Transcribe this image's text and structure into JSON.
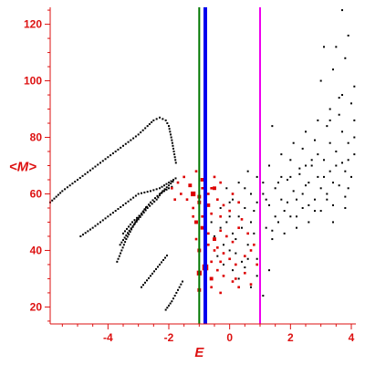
{
  "chart_data": {
    "type": "scatter",
    "title": "",
    "xlabel": "E",
    "ylabel": "<M>",
    "xlim": [
      -5.9,
      4.15
    ],
    "ylim": [
      14,
      126
    ],
    "xticks": [
      -4,
      -2,
      0,
      2,
      4
    ],
    "xtick_labels": [
      "-4",
      "-2",
      "0",
      "2",
      "4"
    ],
    "yticks": [
      20,
      40,
      60,
      80,
      100,
      120
    ],
    "ytick_labels": [
      "20",
      "40",
      "60",
      "80",
      "100",
      "120"
    ],
    "grid": false,
    "colors": {
      "axis": "#dd1111",
      "black_points": "#000000",
      "red_points": "#dd0000"
    },
    "vlines": [
      {
        "x": -1.0,
        "color": "#007700",
        "width": 2
      },
      {
        "x": -0.8,
        "color": "#0000ee",
        "width": 4
      },
      {
        "x": 1.0,
        "color": "#ee00ee",
        "width": 2
      }
    ],
    "curves": [
      {
        "color": "#000000",
        "x": [
          -5.9,
          -5.5,
          -5.0,
          -4.5,
          -4.0,
          -3.5,
          -3.0,
          -2.7,
          -2.5,
          -2.3,
          -2.1,
          -2.0,
          -1.9,
          -1.75
        ],
        "y": [
          57,
          61,
          65,
          69,
          73,
          77,
          81,
          84,
          86,
          87,
          86,
          84,
          79,
          70
        ]
      },
      {
        "color": "#000000",
        "x": [
          -4.9,
          -4.5,
          -4.0,
          -3.5,
          -3.0,
          -2.6,
          -2.3,
          -2.0,
          -1.7
        ],
        "y": [
          45,
          48,
          52,
          56,
          60,
          61,
          62,
          64,
          66
        ]
      },
      {
        "color": "#000000",
        "x": [
          -3.7,
          -3.4,
          -3.1,
          -2.9,
          -2.7
        ],
        "y": [
          36,
          44,
          50,
          53,
          56
        ]
      },
      {
        "color": "#000000",
        "x": [
          -3.6,
          -3.3,
          -3.0,
          -2.7,
          -2.4,
          -2.2,
          -2.0,
          -1.8
        ],
        "y": [
          42,
          47,
          51,
          55,
          58,
          61,
          63,
          65
        ]
      },
      {
        "color": "#000000",
        "x": [
          -3.5,
          -3.2,
          -2.9,
          -2.6,
          -2.3,
          -2.0,
          -1.8
        ],
        "y": [
          46,
          50,
          53,
          57,
          60,
          62,
          63
        ]
      },
      {
        "color": "#000000",
        "x": [
          -2.9,
          -2.6,
          -2.3,
          -2.0
        ],
        "y": [
          27,
          31,
          35,
          39
        ]
      },
      {
        "color": "#000000",
        "x": [
          -2.1,
          -1.9,
          -1.7,
          -1.5
        ],
        "y": [
          19,
          22,
          26,
          30
        ]
      }
    ],
    "black_cloud": {
      "color": "#000000",
      "points": [
        [
          -0.5,
          45
        ],
        [
          -0.3,
          48
        ],
        [
          -0.1,
          50
        ],
        [
          0.1,
          46
        ],
        [
          0.3,
          52
        ],
        [
          0.5,
          55
        ],
        [
          0.7,
          50
        ],
        [
          0.9,
          57
        ],
        [
          1.1,
          60
        ],
        [
          1.3,
          56
        ],
        [
          1.5,
          62
        ],
        [
          1.7,
          58
        ],
        [
          1.9,
          65
        ],
        [
          2.1,
          61
        ],
        [
          2.3,
          67
        ],
        [
          2.5,
          63
        ],
        [
          2.7,
          70
        ],
        [
          2.9,
          66
        ],
        [
          3.1,
          72
        ],
        [
          3.3,
          68
        ],
        [
          3.5,
          75
        ],
        [
          3.7,
          71
        ],
        [
          3.9,
          78
        ],
        [
          4.1,
          74
        ],
        [
          -0.4,
          38
        ],
        [
          -0.2,
          42
        ],
        [
          0.0,
          40
        ],
        [
          0.2,
          44
        ],
        [
          0.4,
          36
        ],
        [
          0.6,
          42
        ],
        [
          0.8,
          46
        ],
        [
          1.0,
          40
        ],
        [
          1.2,
          48
        ],
        [
          1.4,
          44
        ],
        [
          1.6,
          50
        ],
        [
          1.8,
          46
        ],
        [
          2.0,
          52
        ],
        [
          2.2,
          48
        ],
        [
          2.4,
          55
        ],
        [
          2.6,
          50
        ],
        [
          2.8,
          58
        ],
        [
          3.0,
          54
        ],
        [
          3.2,
          60
        ],
        [
          3.4,
          56
        ],
        [
          3.6,
          63
        ],
        [
          3.8,
          59
        ],
        [
          4.0,
          66
        ],
        [
          0.1,
          58
        ],
        [
          0.5,
          62
        ],
        [
          0.9,
          66
        ],
        [
          1.3,
          70
        ],
        [
          1.7,
          74
        ],
        [
          2.1,
          78
        ],
        [
          2.5,
          82
        ],
        [
          2.9,
          86
        ],
        [
          3.3,
          90
        ],
        [
          3.7,
          95
        ],
        [
          4.1,
          98
        ],
        [
          0.3,
          30
        ],
        [
          0.7,
          27
        ],
        [
          1.1,
          24
        ],
        [
          1.3,
          33
        ],
        [
          0.5,
          34
        ],
        [
          0.9,
          31
        ],
        [
          -0.3,
          55
        ],
        [
          0.0,
          57
        ],
        [
          0.6,
          68
        ],
        [
          1.0,
          75
        ],
        [
          1.4,
          84
        ],
        [
          2.0,
          72
        ],
        [
          2.4,
          76
        ],
        [
          2.8,
          79
        ],
        [
          3.2,
          84
        ],
        [
          3.6,
          88
        ],
        [
          4.0,
          92
        ],
        [
          3.0,
          100
        ],
        [
          3.4,
          104
        ],
        [
          3.8,
          108
        ],
        [
          3.5,
          112
        ],
        [
          3.7,
          125
        ],
        [
          3.1,
          112
        ],
        [
          3.9,
          116
        ],
        [
          1.6,
          64
        ],
        [
          2.2,
          58
        ],
        [
          2.6,
          64
        ],
        [
          3.0,
          62
        ],
        [
          3.4,
          64
        ],
        [
          3.8,
          68
        ],
        [
          1.8,
          54
        ],
        [
          2.4,
          60
        ],
        [
          2.9,
          74
        ],
        [
          3.3,
          78
        ],
        [
          3.7,
          82
        ],
        [
          4.1,
          86
        ],
        [
          1.5,
          52
        ],
        [
          1.9,
          57
        ],
        [
          0.4,
          48
        ],
        [
          0.8,
          54
        ],
        [
          1.2,
          58
        ],
        [
          0.2,
          39
        ],
        [
          0.6,
          37
        ],
        [
          -0.6,
          50
        ],
        [
          -0.1,
          62
        ],
        [
          0.3,
          64
        ],
        [
          0.7,
          60
        ],
        [
          1.1,
          64
        ],
        [
          2.3,
          69
        ],
        [
          2.7,
          72
        ],
        [
          3.1,
          66
        ],
        [
          3.5,
          70
        ],
        [
          3.9,
          72
        ],
        [
          4.1,
          80
        ],
        [
          1.7,
          66
        ],
        [
          2.5,
          70
        ],
        [
          3.3,
          86
        ],
        [
          3.6,
          94
        ],
        [
          2.0,
          66
        ],
        [
          2.6,
          56
        ],
        [
          3.2,
          58
        ],
        [
          3.9,
          62
        ],
        [
          1.0,
          44
        ],
        [
          1.4,
          47
        ],
        [
          0.0,
          52
        ],
        [
          -0.2,
          35
        ],
        [
          0.1,
          33
        ],
        [
          0.9,
          37
        ],
        [
          2.2,
          52
        ],
        [
          2.8,
          54
        ],
        [
          3.4,
          50
        ],
        [
          3.8,
          55
        ]
      ]
    },
    "red_points": {
      "color": "#dd0000",
      "points": [
        [
          -1.9,
          62,
          2
        ],
        [
          -1.7,
          64,
          2
        ],
        [
          -1.5,
          66,
          2
        ],
        [
          -1.3,
          63,
          3
        ],
        [
          -1.1,
          68,
          2
        ],
        [
          -0.9,
          65,
          3
        ],
        [
          -0.7,
          60,
          2
        ],
        [
          -0.5,
          62,
          3
        ],
        [
          -1.4,
          58,
          2
        ],
        [
          -1.2,
          60,
          4
        ],
        [
          -1.0,
          57,
          3
        ],
        [
          -0.8,
          55,
          3
        ],
        [
          -0.6,
          53,
          2
        ],
        [
          -0.4,
          58,
          2
        ],
        [
          -0.2,
          56,
          2
        ],
        [
          0.0,
          54,
          2
        ],
        [
          -1.1,
          50,
          3
        ],
        [
          -0.9,
          48,
          3
        ],
        [
          -0.7,
          46,
          2
        ],
        [
          -0.5,
          44,
          3
        ],
        [
          -0.3,
          47,
          2
        ],
        [
          -0.1,
          45,
          2
        ],
        [
          0.1,
          43,
          2
        ],
        [
          0.3,
          48,
          2
        ],
        [
          -1.0,
          40,
          3
        ],
        [
          -0.8,
          38,
          3
        ],
        [
          -0.6,
          36,
          2
        ],
        [
          -0.4,
          41,
          2
        ],
        [
          -0.2,
          39,
          2
        ],
        [
          0.0,
          37,
          2
        ],
        [
          0.2,
          35,
          2
        ],
        [
          -1.0,
          32,
          4
        ],
        [
          -0.8,
          34,
          5
        ],
        [
          -0.6,
          30,
          3
        ],
        [
          -0.4,
          33,
          2
        ],
        [
          -0.2,
          31,
          2
        ],
        [
          0.1,
          29,
          2
        ],
        [
          0.3,
          27,
          2
        ],
        [
          -1.0,
          26,
          3
        ],
        [
          -0.8,
          24,
          2
        ],
        [
          -0.6,
          27,
          2
        ],
        [
          -0.3,
          25,
          2
        ],
        [
          0.2,
          30,
          2
        ],
        [
          0.5,
          32,
          2
        ],
        [
          0.7,
          28,
          2
        ],
        [
          -1.2,
          55,
          2
        ],
        [
          -1.0,
          59,
          3
        ],
        [
          -0.9,
          62,
          2
        ],
        [
          -1.2,
          52,
          2
        ],
        [
          -0.3,
          52,
          2
        ],
        [
          0.4,
          51,
          2
        ],
        [
          0.6,
          46,
          2
        ],
        [
          0.8,
          42,
          2
        ],
        [
          -1.6,
          60,
          2
        ],
        [
          -1.8,
          58,
          2
        ],
        [
          -0.5,
          66,
          2
        ],
        [
          -0.3,
          64,
          2
        ],
        [
          0.1,
          60,
          2
        ],
        [
          0.3,
          57,
          2
        ],
        [
          -1.1,
          44,
          2
        ],
        [
          -0.7,
          42,
          2
        ],
        [
          -0.5,
          40,
          2
        ],
        [
          -0.3,
          36,
          2
        ],
        [
          0.5,
          38,
          2
        ],
        [
          0.7,
          40,
          2
        ],
        [
          0.9,
          35,
          2
        ],
        [
          -0.6,
          62,
          2
        ],
        [
          -0.7,
          56,
          3
        ],
        [
          -0.9,
          52,
          2
        ]
      ]
    }
  }
}
